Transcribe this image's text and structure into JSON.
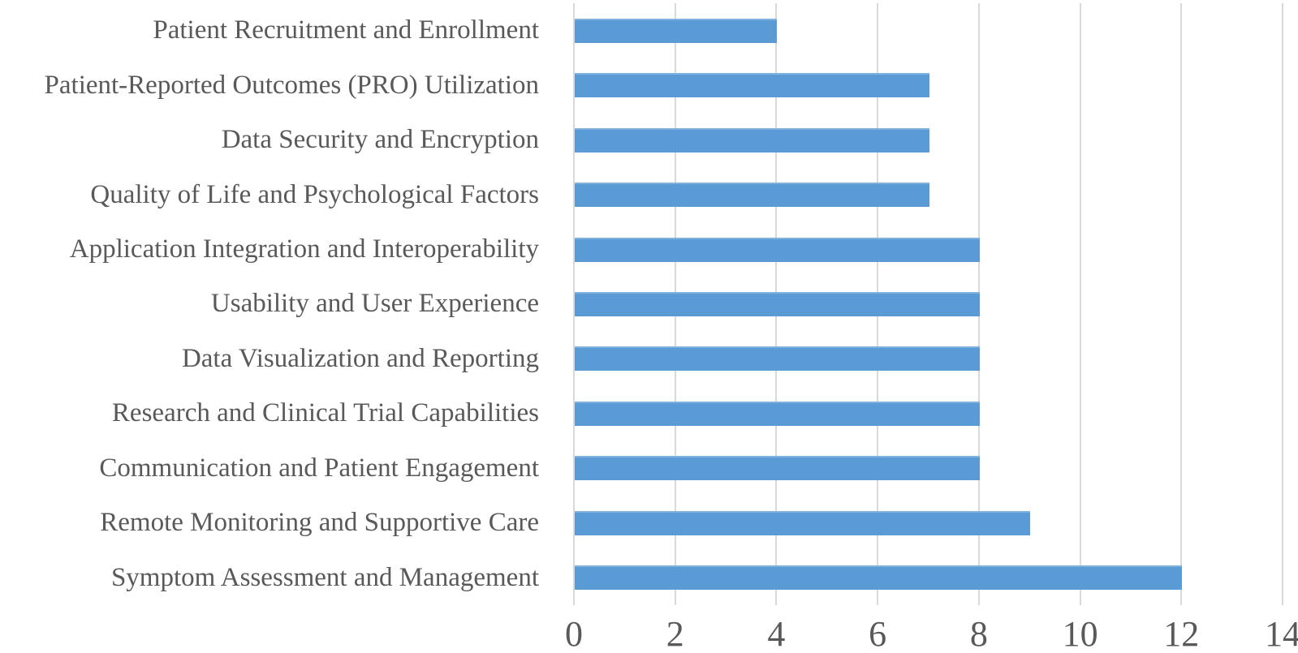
{
  "chart_data": {
    "type": "bar",
    "orientation": "horizontal",
    "title": "",
    "xlabel": "",
    "ylabel": "",
    "xlim": [
      0,
      14
    ],
    "xticks": [
      0,
      2,
      4,
      6,
      8,
      10,
      12,
      14
    ],
    "grid": true,
    "legend": false,
    "categories_top_to_bottom": [
      "Patient Recruitment and Enrollment",
      "Patient-Reported Outcomes (PRO) Utilization",
      "Data Security and Encryption",
      "Quality of Life and Psychological Factors",
      "Application Integration and Interoperability",
      "Usability and User Experience",
      "Data Visualization and Reporting",
      "Research and Clinical Trial Capabilities",
      "Communication and Patient Engagement",
      "Remote Monitoring and Supportive Care",
      "Symptom Assessment and Management"
    ],
    "values": [
      4,
      7,
      7,
      7,
      8,
      8,
      8,
      8,
      8,
      9,
      12
    ],
    "colors": {
      "bar": "#5b9bd5",
      "bar_top_edge": "#7fb2de",
      "gridline": "#d9d9d9",
      "text": "#595959",
      "background": "#ffffff"
    }
  }
}
